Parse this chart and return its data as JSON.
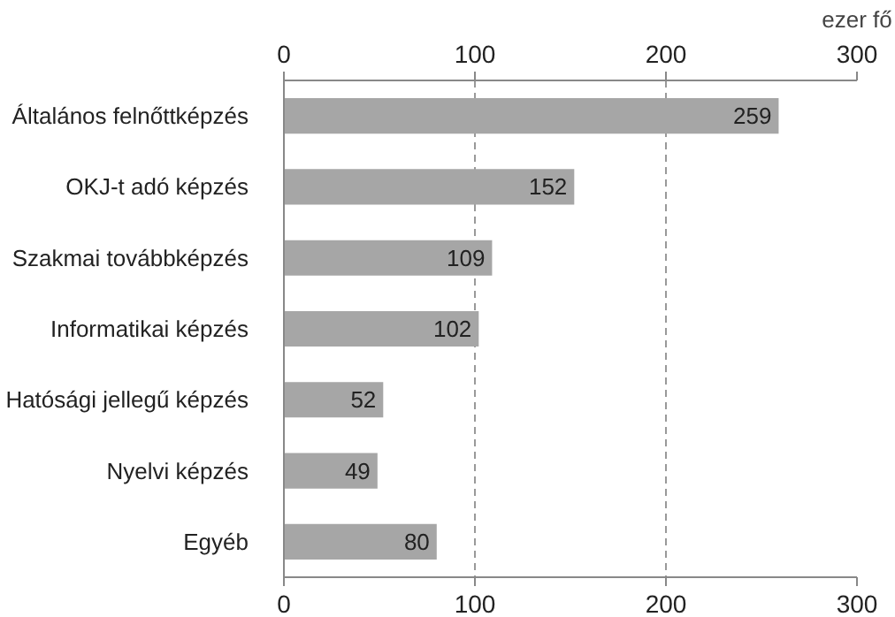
{
  "chart_data": {
    "type": "bar",
    "orientation": "horizontal",
    "categories": [
      "Általános felnőttképzés",
      "OKJ-t adó képzés",
      "Szakmai továbbképzés",
      "Informatikai képzés",
      "Hatósági jellegű képzés",
      "Nyelvi képzés",
      "Egyéb"
    ],
    "values": [
      259,
      152,
      109,
      102,
      52,
      49,
      80
    ],
    "color": "#a6a6a6",
    "xlim": [
      0,
      300
    ],
    "xticks": [
      0,
      100,
      200,
      300
    ],
    "x2lim": [
      0,
      300
    ],
    "x2ticks": [
      0,
      100,
      200,
      300
    ],
    "x2label": "ezer fő",
    "grid": "x",
    "data_labels": true
  }
}
